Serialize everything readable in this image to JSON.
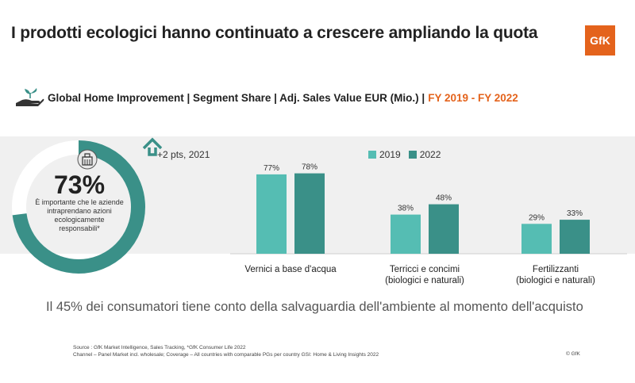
{
  "header": {
    "title": "I prodotti ecologici hanno continuato a crescere ampliando la quota",
    "logo_text": "GfK"
  },
  "subtitle": {
    "main": "Global Home Improvement  | Segment Share | Adj. Sales Value EUR (Mio.) |",
    "period": "FY 2019 - FY 2022"
  },
  "donut": {
    "value": 73,
    "value_label": "73%",
    "text": "È importante che le aziende intraprendano azioni ecologicamente responsabili*",
    "icon": "building-icon",
    "color": "#3a9088"
  },
  "change": {
    "icon": "up-arrow-icon",
    "text": "+2 pts, 2021"
  },
  "colors": {
    "series_2019": "#55bdb3",
    "series_2022": "#3a9088",
    "accent": "#e4631c"
  },
  "chart_data": {
    "type": "bar",
    "categories": [
      "Vernici a base d'acqua",
      "Terricci e concimi\n(biologici e naturali)",
      "Fertilizzanti\n(biologici e naturali)"
    ],
    "series": [
      {
        "name": "2019",
        "values": [
          77,
          38,
          29
        ],
        "labels": [
          "77%",
          "38%",
          "29%"
        ]
      },
      {
        "name": "2022",
        "values": [
          78,
          48,
          33
        ],
        "labels": [
          "78%",
          "48%",
          "33%"
        ]
      }
    ],
    "ylim": [
      0,
      100
    ],
    "legend": "top"
  },
  "footer": {
    "statement": "Il 45% dei consumatori tiene conto della salvaguardia dell'ambiente al momento dell'acquisto",
    "source_line1": "Source : GfK Market Intelligence, Sales Tracking, *GfK Consumer Life 2022",
    "source_line2": "Channel – Panel Market incl. wholesale; Coverage – All countries with comparable PGs per country GSI: Home & Living Insights 2022",
    "copyright": "© GfK"
  }
}
